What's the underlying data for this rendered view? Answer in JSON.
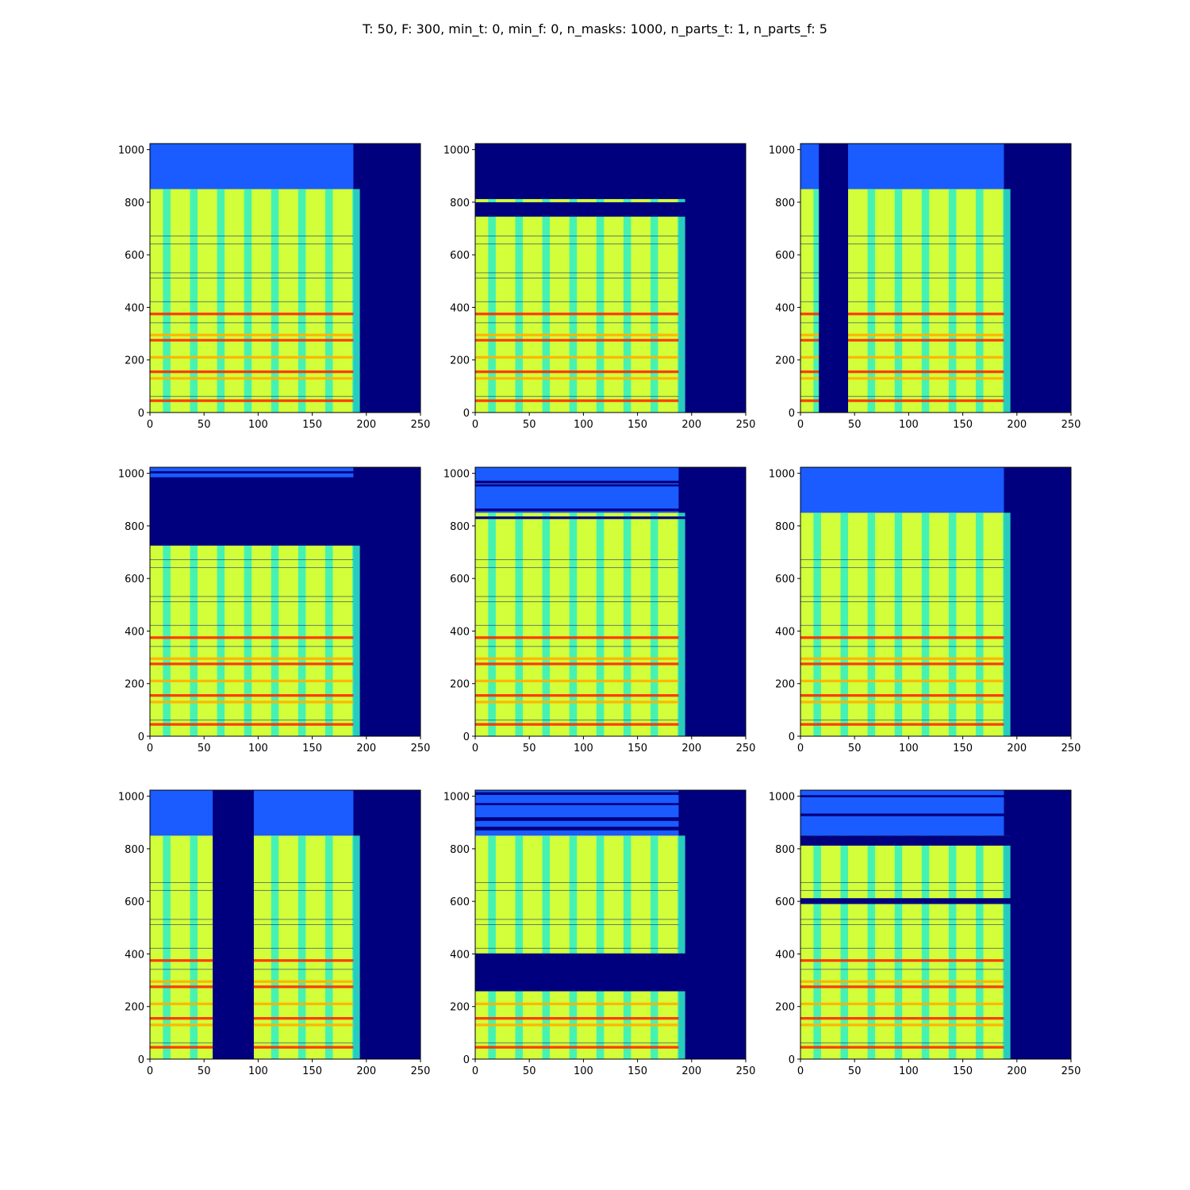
{
  "title": "T: 50, F: 300, min_t: 0, min_f: 0, n_masks: 1000, n_parts_t: 1, n_parts_f: 5",
  "colors": {
    "masked": "#00007f",
    "noise": "#1a5cff",
    "signal_body": "#d2ff3a",
    "signal_stripe": "#2ef0c8",
    "harmonic": "#ff2a00",
    "harmonic_alt": "#ffb000",
    "dark_line": "#00007f"
  },
  "chart_data": [
    {
      "type": "heatmap",
      "colormap": "jet",
      "xlim": [
        0,
        250
      ],
      "ylim": [
        0,
        1023
      ],
      "data_x_extent": [
        0,
        188
      ],
      "xticks": [
        "0",
        "50",
        "100",
        "150",
        "200",
        "250"
      ],
      "yticks": [
        "0",
        "200",
        "400",
        "600",
        "800",
        "1000"
      ],
      "signal_top": 850,
      "noise_top": 1023,
      "time_masks": [],
      "freq_masks": []
    },
    {
      "type": "heatmap",
      "colormap": "jet",
      "xlim": [
        0,
        250
      ],
      "ylim": [
        0,
        1023
      ],
      "data_x_extent": [
        0,
        188
      ],
      "xticks": [
        "0",
        "50",
        "100",
        "150",
        "200",
        "250"
      ],
      "yticks": [
        "0",
        "200",
        "400",
        "600",
        "800",
        "1000"
      ],
      "signal_top": 850,
      "noise_top": 1023,
      "time_masks": [],
      "freq_masks": [
        [
          745,
          800
        ],
        [
          812,
          1023
        ]
      ]
    },
    {
      "type": "heatmap",
      "colormap": "jet",
      "xlim": [
        0,
        250
      ],
      "ylim": [
        0,
        1023
      ],
      "data_x_extent": [
        0,
        188
      ],
      "xticks": [
        "0",
        "50",
        "100",
        "150",
        "200",
        "250"
      ],
      "yticks": [
        "0",
        "200",
        "400",
        "600",
        "800",
        "1000"
      ],
      "signal_top": 850,
      "noise_top": 1023,
      "time_masks": [
        [
          17,
          44
        ]
      ],
      "freq_masks": []
    },
    {
      "type": "heatmap",
      "colormap": "jet",
      "xlim": [
        0,
        250
      ],
      "ylim": [
        0,
        1023
      ],
      "data_x_extent": [
        0,
        188
      ],
      "xticks": [
        "0",
        "50",
        "100",
        "150",
        "200",
        "250"
      ],
      "yticks": [
        "0",
        "200",
        "400",
        "600",
        "800",
        "1000"
      ],
      "signal_top": 850,
      "noise_top": 1023,
      "time_masks": [],
      "freq_masks": [
        [
          725,
          985
        ],
        [
          1000,
          1008
        ]
      ]
    },
    {
      "type": "heatmap",
      "colormap": "jet",
      "xlim": [
        0,
        250
      ],
      "ylim": [
        0,
        1023
      ],
      "data_x_extent": [
        0,
        188
      ],
      "xticks": [
        "0",
        "50",
        "100",
        "150",
        "200",
        "250"
      ],
      "yticks": [
        "0",
        "200",
        "400",
        "600",
        "800",
        "1000"
      ],
      "signal_top": 850,
      "noise_top": 1023,
      "time_masks": [],
      "freq_masks": [
        [
          826,
          836
        ],
        [
          856,
          866
        ],
        [
          950,
          958
        ],
        [
          962,
          972
        ]
      ]
    },
    {
      "type": "heatmap",
      "colormap": "jet",
      "xlim": [
        0,
        250
      ],
      "ylim": [
        0,
        1023
      ],
      "data_x_extent": [
        0,
        188
      ],
      "xticks": [
        "0",
        "50",
        "100",
        "150",
        "200",
        "250"
      ],
      "yticks": [
        "0",
        "200",
        "400",
        "600",
        "800",
        "1000"
      ],
      "signal_top": 850,
      "noise_top": 1023,
      "time_masks": [],
      "freq_masks": []
    },
    {
      "type": "heatmap",
      "colormap": "jet",
      "xlim": [
        0,
        250
      ],
      "ylim": [
        0,
        1023
      ],
      "data_x_extent": [
        0,
        188
      ],
      "xticks": [
        "0",
        "50",
        "100",
        "150",
        "200",
        "250"
      ],
      "yticks": [
        "0",
        "200",
        "400",
        "600",
        "800",
        "1000"
      ],
      "signal_top": 850,
      "noise_top": 1023,
      "time_masks": [
        [
          58,
          96
        ]
      ],
      "freq_masks": []
    },
    {
      "type": "heatmap",
      "colormap": "jet",
      "xlim": [
        0,
        250
      ],
      "ylim": [
        0,
        1023
      ],
      "data_x_extent": [
        0,
        188
      ],
      "xticks": [
        "0",
        "50",
        "100",
        "150",
        "200",
        "250"
      ],
      "yticks": [
        "0",
        "200",
        "400",
        "600",
        "800",
        "1000"
      ],
      "signal_top": 850,
      "noise_top": 1023,
      "time_masks": [],
      "freq_masks": [
        [
          258,
          402
        ],
        [
          870,
          884
        ],
        [
          906,
          920
        ],
        [
          966,
          974
        ],
        [
          1005,
          1015
        ]
      ]
    },
    {
      "type": "heatmap",
      "colormap": "jet",
      "xlim": [
        0,
        250
      ],
      "ylim": [
        0,
        1023
      ],
      "data_x_extent": [
        0,
        188
      ],
      "xticks": [
        "0",
        "50",
        "100",
        "150",
        "200",
        "250"
      ],
      "yticks": [
        "0",
        "200",
        "400",
        "600",
        "800",
        "1000"
      ],
      "signal_top": 850,
      "noise_top": 1023,
      "time_masks": [],
      "freq_masks": [
        [
          590,
          612
        ],
        [
          812,
          850
        ],
        [
          924,
          934
        ],
        [
          996,
          1004
        ]
      ]
    }
  ]
}
